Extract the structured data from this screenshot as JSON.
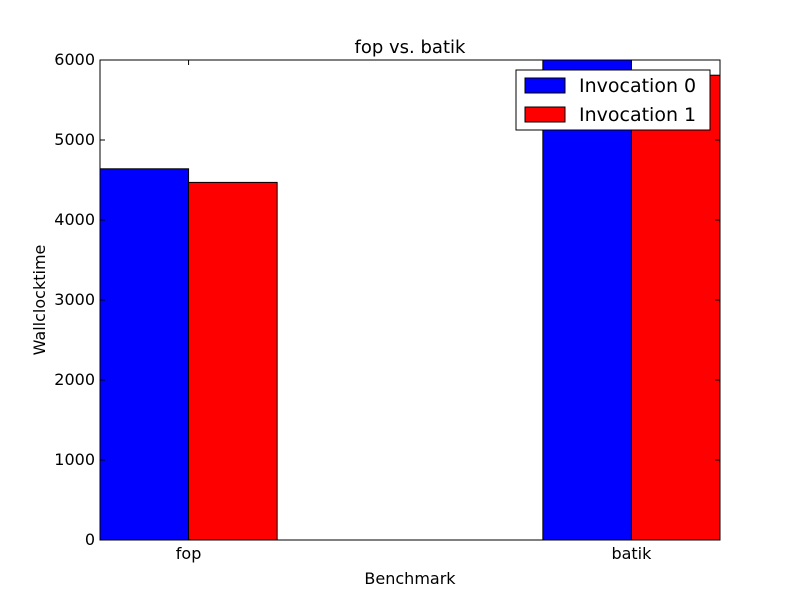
{
  "chart_data": {
    "type": "bar",
    "title": "fop vs. batik",
    "xlabel": "Benchmark",
    "ylabel": "Wallclocktime",
    "categories": [
      "fop",
      "batik"
    ],
    "series": [
      {
        "name": "Invocation 0",
        "values": [
          4640,
          6000
        ],
        "color": "#0000ff"
      },
      {
        "name": "Invocation 1",
        "values": [
          4470,
          5810
        ],
        "color": "#ff0000"
      }
    ],
    "ylim": [
      0,
      6000
    ],
    "yticks": [
      "0",
      "1000",
      "2000",
      "3000",
      "4000",
      "5000",
      "6000"
    ],
    "grid": false,
    "legend_position": "top-right"
  }
}
